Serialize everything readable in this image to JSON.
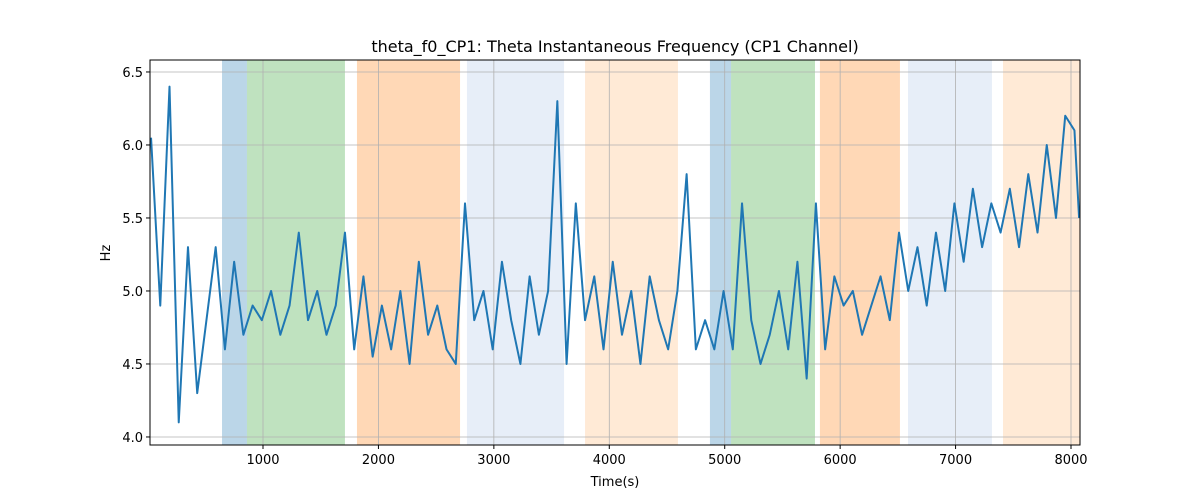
{
  "chart_data": {
    "type": "line",
    "title": "theta_f0_CP1: Theta Instantaneous Frequency (CP1 Channel)",
    "xlabel": "Time(s)",
    "ylabel": "Hz",
    "xlim": [
      21,
      8078
    ],
    "ylim": [
      3.945,
      6.582
    ],
    "xticks": [
      1000,
      2000,
      3000,
      4000,
      5000,
      6000,
      7000,
      8000
    ],
    "yticks": [
      {
        "value": 4,
        "label": "4.0"
      },
      4.5,
      {
        "value": 5,
        "label": "5.0"
      },
      5.5,
      {
        "value": 6,
        "label": "6.0"
      },
      6.5
    ],
    "grid": true,
    "spans": [
      {
        "start": 645,
        "end": 861,
        "color": "#1f77b4",
        "alpha": 0.3
      },
      {
        "start": 861,
        "end": 1710,
        "color": "#2ca02c",
        "alpha": 0.3
      },
      {
        "start": 1814,
        "end": 2707,
        "color": "#ff7f0e",
        "alpha": 0.3
      },
      {
        "start": 2767,
        "end": 3608,
        "color": "#aec7e8",
        "alpha": 0.3
      },
      {
        "start": 3790,
        "end": 4595,
        "color": "#ffbb78",
        "alpha": 0.3
      },
      {
        "start": 4872,
        "end": 5055,
        "color": "#1f77b4",
        "alpha": 0.3
      },
      {
        "start": 5055,
        "end": 5782,
        "color": "#2ca02c",
        "alpha": 0.3
      },
      {
        "start": 5825,
        "end": 6518,
        "color": "#ff7f0e",
        "alpha": 0.3
      },
      {
        "start": 6588,
        "end": 7315,
        "color": "#aec7e8",
        "alpha": 0.3
      },
      {
        "start": 7411,
        "end": 8078,
        "color": "#ffbb78",
        "alpha": 0.3
      }
    ],
    "x": [
      30,
      110,
      190,
      270,
      350,
      430,
      510,
      590,
      670,
      750,
      830,
      910,
      990,
      1070,
      1150,
      1230,
      1310,
      1390,
      1470,
      1550,
      1630,
      1710,
      1790,
      1870,
      1950,
      2030,
      2110,
      2190,
      2270,
      2350,
      2430,
      2510,
      2590,
      2670,
      2750,
      2830,
      2910,
      2990,
      3070,
      3150,
      3230,
      3310,
      3390,
      3470,
      3550,
      3630,
      3710,
      3790,
      3870,
      3950,
      4030,
      4110,
      4190,
      4270,
      4350,
      4430,
      4510,
      4590,
      4670,
      4750,
      4830,
      4910,
      4990,
      5070,
      5150,
      5230,
      5310,
      5390,
      5470,
      5550,
      5630,
      5710,
      5790,
      5870,
      5950,
      6030,
      6110,
      6190,
      6270,
      6350,
      6430,
      6510,
      6590,
      6670,
      6750,
      6830,
      6910,
      6990,
      7070,
      7150,
      7230,
      7310,
      7390,
      7470,
      7550,
      7630,
      7710,
      7790,
      7870,
      7950,
      8030,
      8070
    ],
    "series": [
      {
        "name": "theta_f0_CP1",
        "color": "#1f77b4",
        "values": [
          6.05,
          4.9,
          6.4,
          4.1,
          5.3,
          4.3,
          4.8,
          5.3,
          4.6,
          5.2,
          4.7,
          4.9,
          4.8,
          5.0,
          4.7,
          4.9,
          5.4,
          4.8,
          5.0,
          4.7,
          4.9,
          5.4,
          4.6,
          5.1,
          4.55,
          4.9,
          4.6,
          5.0,
          4.5,
          5.2,
          4.7,
          4.9,
          4.6,
          4.5,
          5.6,
          4.8,
          5.0,
          4.6,
          5.2,
          4.8,
          4.5,
          5.1,
          4.7,
          5.0,
          6.3,
          4.5,
          5.6,
          4.8,
          5.1,
          4.6,
          5.2,
          4.7,
          5.0,
          4.5,
          5.1,
          4.8,
          4.6,
          5.0,
          5.8,
          4.6,
          4.8,
          4.6,
          5.0,
          4.6,
          5.6,
          4.8,
          4.5,
          4.7,
          5.0,
          4.6,
          5.2,
          4.4,
          5.6,
          4.6,
          5.1,
          4.9,
          5.0,
          4.7,
          4.9,
          5.1,
          4.8,
          5.4,
          5.0,
          5.3,
          4.9,
          5.4,
          5.0,
          5.6,
          5.2,
          5.7,
          5.3,
          5.6,
          5.4,
          5.7,
          5.3,
          5.8,
          5.4,
          6.0,
          5.5,
          6.2,
          6.1,
          5.5
        ]
      }
    ]
  }
}
